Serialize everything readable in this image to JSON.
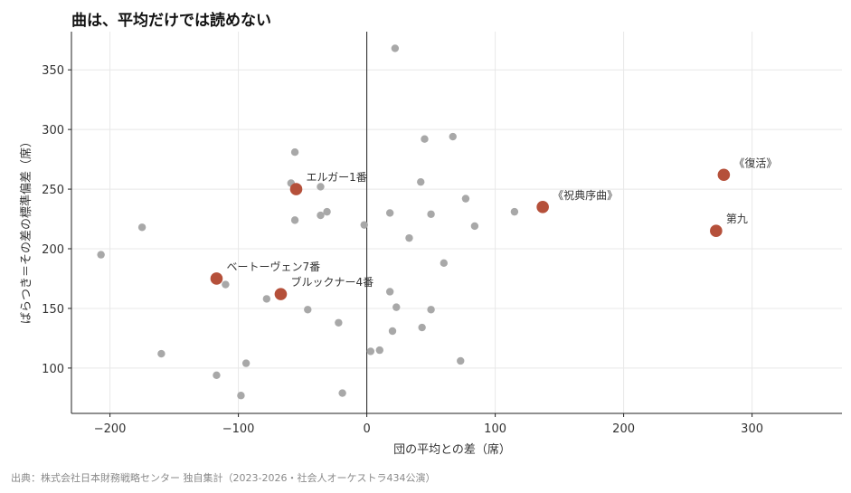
{
  "title": "曲は、平均だけでは読めない",
  "source": "出典：株式会社日本財務戦略センター 独自集計（2023-2026・社会人オーケストラ434公演）",
  "chart_data": {
    "type": "scatter",
    "xlabel": "団の平均との差（席）",
    "ylabel": "ばらつき＝その差の標準偏差（席）",
    "xlim": [
      -230,
      370
    ],
    "ylim": [
      62,
      382
    ],
    "xticks": [
      -200,
      -100,
      0,
      100,
      200,
      300
    ],
    "xtick_labels": [
      "−200",
      "−100",
      "0",
      "100",
      "200",
      "300"
    ],
    "yticks": [
      100,
      150,
      200,
      250,
      300,
      350
    ],
    "ytick_labels": [
      "100",
      "150",
      "200",
      "250",
      "300",
      "350"
    ],
    "grid": true,
    "zero_line_x": 0,
    "colors": {
      "background_points": "#a8a8a8",
      "highlight_points": "#b5503a",
      "grid": "#e8e8e8",
      "axis": "#222222"
    },
    "series": [
      {
        "points": [
          {
            "x": 22,
            "y": 368
          },
          {
            "x": 45,
            "y": 292
          },
          {
            "x": 67,
            "y": 294
          },
          {
            "x": -56,
            "y": 281
          },
          {
            "x": -59,
            "y": 255
          },
          {
            "x": -36,
            "y": 252
          },
          {
            "x": 42,
            "y": 256
          },
          {
            "x": 77,
            "y": 242
          },
          {
            "x": -31,
            "y": 231
          },
          {
            "x": -36,
            "y": 228
          },
          {
            "x": -56,
            "y": 224
          },
          {
            "x": 18,
            "y": 230
          },
          {
            "x": 50,
            "y": 229
          },
          {
            "x": 84,
            "y": 219
          },
          {
            "x": 115,
            "y": 231
          },
          {
            "x": -175,
            "y": 218
          },
          {
            "x": -2,
            "y": 220
          },
          {
            "x": 33,
            "y": 209
          },
          {
            "x": -207,
            "y": 195
          },
          {
            "x": 60,
            "y": 188
          },
          {
            "x": -110,
            "y": 170
          },
          {
            "x": -78,
            "y": 158
          },
          {
            "x": 18,
            "y": 164
          },
          {
            "x": -46,
            "y": 149
          },
          {
            "x": 23,
            "y": 151
          },
          {
            "x": 50,
            "y": 149
          },
          {
            "x": -22,
            "y": 138
          },
          {
            "x": 43,
            "y": 134
          },
          {
            "x": 20,
            "y": 131
          },
          {
            "x": -160,
            "y": 112
          },
          {
            "x": 3,
            "y": 114
          },
          {
            "x": 10,
            "y": 115
          },
          {
            "x": 73,
            "y": 106
          },
          {
            "x": -94,
            "y": 104
          },
          {
            "x": -117,
            "y": 94
          },
          {
            "x": -19,
            "y": 79
          },
          {
            "x": -98,
            "y": 77
          }
        ]
      },
      {
        "points": [
          {
            "x": 278,
            "y": 262,
            "label": "《復活》"
          },
          {
            "x": 137,
            "y": 235,
            "label": "《祝典序曲》"
          },
          {
            "x": 272,
            "y": 215,
            "label": "第九"
          },
          {
            "x": -55,
            "y": 250,
            "label": "エルガー1番"
          },
          {
            "x": -117,
            "y": 175,
            "label": "ベートーヴェン7番"
          },
          {
            "x": -67,
            "y": 162,
            "label": "ブルックナー4番"
          }
        ]
      }
    ]
  }
}
